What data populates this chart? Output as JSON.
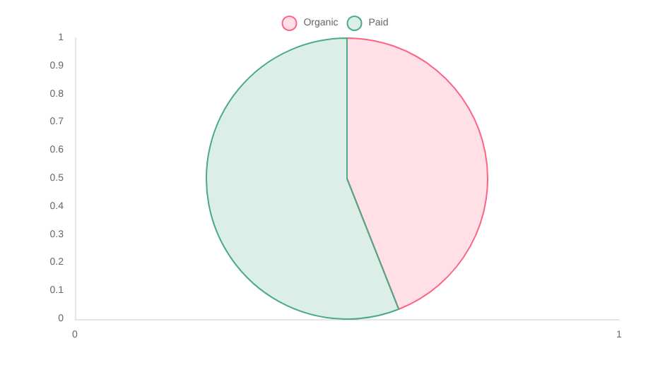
{
  "chart_data": [
    {
      "type": "pie",
      "categories": [
        "Organic",
        "Paid"
      ],
      "values": [
        44,
        56
      ],
      "colors": [
        "#ff6384",
        "#4bab85"
      ],
      "legend": "top"
    },
    {
      "type": "scatter",
      "xlim": [
        0,
        1
      ],
      "xticks": [
        0,
        1
      ],
      "ylim": [
        0,
        1
      ],
      "yticks": [
        0,
        0.1,
        0.2,
        0.3,
        0.4,
        0.5,
        0.6,
        0.7,
        0.8,
        0.9,
        1
      ],
      "grid": false
    }
  ]
}
